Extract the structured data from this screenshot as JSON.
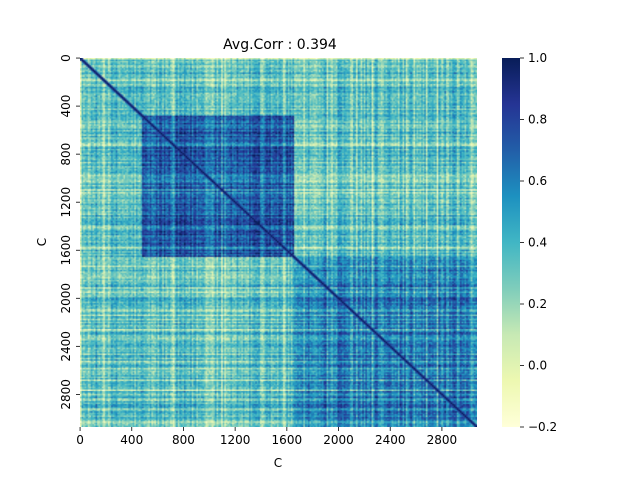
{
  "chart_data": {
    "type": "heatmap",
    "title": "Avg.Corr : 0.394",
    "xlabel": "C",
    "ylabel": "C",
    "x_ticks": [
      "0",
      "400",
      "800",
      "1200",
      "1600",
      "2000",
      "2400",
      "2800"
    ],
    "y_ticks": [
      "0",
      "400",
      "800",
      "1200",
      "1600",
      "2000",
      "2400",
      "2800"
    ],
    "n": 3072,
    "colorbar": {
      "min": -0.2,
      "max": 1.0,
      "ticks": [
        "−0.2",
        "0.0",
        "0.2",
        "0.4",
        "0.6",
        "0.8",
        "1.0"
      ],
      "tick_values": [
        -0.2,
        0.0,
        0.2,
        0.4,
        0.6,
        0.8,
        1.0
      ]
    },
    "colormap": [
      "#ffffd9",
      "#edf8b1",
      "#c7e9b4",
      "#7fcdbb",
      "#41b6c4",
      "#1d91c0",
      "#225ea8",
      "#253494",
      "#081d58"
    ],
    "mean_value": 0.394,
    "blocks": [
      {
        "start": 480,
        "end": 1660,
        "value": 0.72
      },
      {
        "start": 1660,
        "end": 3072,
        "value": 0.6
      }
    ]
  }
}
